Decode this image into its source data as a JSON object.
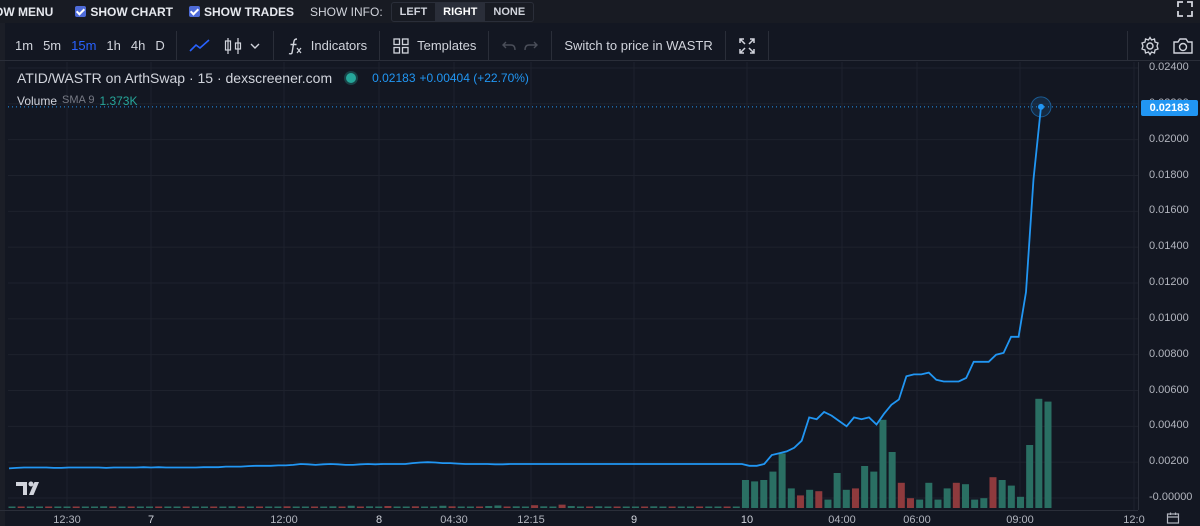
{
  "top_bar": {
    "menu_label": "OW MENU",
    "show_chart": "SHOW CHART",
    "show_trades": "SHOW TRADES",
    "show_info_label": "SHOW INFO:",
    "info_options": [
      "LEFT",
      "RIGHT",
      "NONE"
    ],
    "info_selected": "RIGHT"
  },
  "toolbar": {
    "timeframes": [
      "1m",
      "5m",
      "15m",
      "1h",
      "4h",
      "D"
    ],
    "active_timeframe": "15m",
    "indicators_label": "Indicators",
    "templates_label": "Templates",
    "switch_label": "Switch to price in WASTR"
  },
  "legend": {
    "symbol": "ATID/WASTR on ArthSwap · 15 · dexscreener.com",
    "price": "0.02183",
    "change": "+0.00404 (+22.70%)",
    "volume_label": "Volume",
    "sma_label": "SMA 9",
    "volume_value": "1.373K"
  },
  "price_badge": "0.02183",
  "colors": {
    "background": "#131722",
    "line": "#2196f3",
    "up": "#26a69a",
    "down": "#ef5350",
    "accent": "#2962ff"
  },
  "chart_data": {
    "type": "line",
    "price_ticks": [
      "0.02400",
      "0.02200",
      "0.02000",
      "0.01800",
      "0.01600",
      "0.01400",
      "0.01200",
      "0.01000",
      "0.00800",
      "0.00600",
      "0.00400",
      "0.00200",
      "-0.00000"
    ],
    "ylim": [
      0,
      0.024
    ],
    "x_labels": [
      "12:30",
      "7",
      "12:00",
      "8",
      "04:30",
      "12:15",
      "9",
      "10",
      "04:00",
      "06:00",
      "09:00",
      "12:0"
    ],
    "x_label_bold": [
      "7",
      "8",
      "9",
      "10"
    ],
    "price_series": [
      0.00165,
      0.00168,
      0.0017,
      0.0017,
      0.0017,
      0.0017,
      0.00168,
      0.00168,
      0.0017,
      0.0017,
      0.0017,
      0.0017,
      0.0017,
      0.00168,
      0.0017,
      0.0017,
      0.0017,
      0.0017,
      0.00172,
      0.0017,
      0.00172,
      0.0017,
      0.0017,
      0.0017,
      0.0017,
      0.0017,
      0.00172,
      0.00172,
      0.00172,
      0.00175,
      0.00175,
      0.00175,
      0.00178,
      0.0018,
      0.0018,
      0.0018,
      0.00182,
      0.00182,
      0.00185,
      0.0019,
      0.00188,
      0.00185,
      0.00188,
      0.0019,
      0.00188,
      0.00185,
      0.00185,
      0.00188,
      0.0019,
      0.00188,
      0.0019,
      0.0019,
      0.0019,
      0.0019,
      0.00195,
      0.00198,
      0.002,
      0.00198,
      0.00195,
      0.00195,
      0.00192,
      0.0019,
      0.0019,
      0.0019,
      0.0019,
      0.00188,
      0.00188,
      0.0019,
      0.0019,
      0.0019,
      0.0019,
      0.0019,
      0.0019,
      0.0019,
      0.0019,
      0.0019,
      0.0019,
      0.0019,
      0.0019,
      0.0019,
      0.0019,
      0.0019,
      0.0019,
      0.0019,
      0.0019,
      0.0019,
      0.0019,
      0.0019,
      0.0019,
      0.0019,
      0.0019,
      0.0019,
      0.0019,
      0.0019,
      0.0019,
      0.0019,
      0.0019,
      0.0019,
      0.0019,
      0.0018,
      0.0018,
      0.0019,
      0.0024,
      0.0025,
      0.0026,
      0.0028,
      0.0032,
      0.0045,
      0.0044,
      0.0048,
      0.0046,
      0.0043,
      0.004,
      0.0045,
      0.0044,
      0.0045,
      0.0041,
      0.0047,
      0.0052,
      0.0055,
      0.0068,
      0.0069,
      0.0069,
      0.007,
      0.0066,
      0.0065,
      0.0065,
      0.0065,
      0.0067,
      0.0076,
      0.0076,
      0.0076,
      0.008,
      0.0081,
      0.009,
      0.009,
      0.0115,
      0.0178,
      0.02183
    ],
    "volume_series": [
      {
        "v": 0.05,
        "up": true
      },
      {
        "v": 0.02,
        "up": false
      },
      {
        "v": 0.03,
        "up": true
      },
      {
        "v": 0.02,
        "up": true
      },
      {
        "v": 0.04,
        "up": false
      },
      {
        "v": 0.03,
        "up": true
      },
      {
        "v": 0.05,
        "up": true
      },
      {
        "v": 0.02,
        "up": false
      },
      {
        "v": 0.03,
        "up": true
      },
      {
        "v": 0.02,
        "up": true
      },
      {
        "v": 0.06,
        "up": true
      },
      {
        "v": 0.03,
        "up": false
      },
      {
        "v": 0.04,
        "up": true
      },
      {
        "v": 0.02,
        "up": false
      },
      {
        "v": 0.05,
        "up": true
      },
      {
        "v": 0.03,
        "up": true
      },
      {
        "v": 0.03,
        "up": false
      },
      {
        "v": 0.04,
        "up": true
      },
      {
        "v": 0.02,
        "up": true
      },
      {
        "v": 0.03,
        "up": false
      },
      {
        "v": 0.05,
        "up": true
      },
      {
        "v": 0.03,
        "up": true
      },
      {
        "v": 0.04,
        "up": false
      },
      {
        "v": 0.03,
        "up": true
      },
      {
        "v": 0.06,
        "up": true
      },
      {
        "v": 0.04,
        "up": false
      },
      {
        "v": 0.03,
        "up": true
      },
      {
        "v": 0.05,
        "up": false
      },
      {
        "v": 0.03,
        "up": true
      },
      {
        "v": 0.04,
        "up": true
      },
      {
        "v": 0.06,
        "up": false
      },
      {
        "v": 0.05,
        "up": true
      },
      {
        "v": 0.03,
        "up": true
      },
      {
        "v": 0.04,
        "up": false
      },
      {
        "v": 0.05,
        "up": true
      },
      {
        "v": 0.06,
        "up": true
      },
      {
        "v": 0.03,
        "up": false
      },
      {
        "v": 0.08,
        "up": true
      },
      {
        "v": 0.05,
        "up": false
      },
      {
        "v": 0.06,
        "up": true
      },
      {
        "v": 0.04,
        "up": true
      },
      {
        "v": 0.07,
        "up": false
      },
      {
        "v": 0.05,
        "up": true
      },
      {
        "v": 0.04,
        "up": true
      },
      {
        "v": 0.06,
        "up": false
      },
      {
        "v": 0.03,
        "up": true
      },
      {
        "v": 0.05,
        "up": true
      },
      {
        "v": 0.08,
        "up": true
      },
      {
        "v": 0.06,
        "up": false
      },
      {
        "v": 0.04,
        "up": true
      },
      {
        "v": 0.05,
        "up": true
      },
      {
        "v": 0.03,
        "up": false
      },
      {
        "v": 0.07,
        "up": true
      },
      {
        "v": 0.09,
        "up": true
      },
      {
        "v": 0.05,
        "up": false
      },
      {
        "v": 0.06,
        "up": true
      },
      {
        "v": 0.04,
        "up": true
      },
      {
        "v": 0.1,
        "up": false
      },
      {
        "v": 0.06,
        "up": true
      },
      {
        "v": 0.05,
        "up": true
      },
      {
        "v": 0.12,
        "up": false
      },
      {
        "v": 0.07,
        "up": true
      },
      {
        "v": 0.05,
        "up": true
      },
      {
        "v": 0.04,
        "up": false
      },
      {
        "v": 0.06,
        "up": true
      },
      {
        "v": 0.05,
        "up": true
      },
      {
        "v": 0.04,
        "up": false
      },
      {
        "v": 0.05,
        "up": true
      },
      {
        "v": 0.03,
        "up": true
      },
      {
        "v": 0.04,
        "up": false
      },
      {
        "v": 0.06,
        "up": true
      },
      {
        "v": 0.05,
        "up": true
      },
      {
        "v": 0.03,
        "up": false
      },
      {
        "v": 0.04,
        "up": true
      },
      {
        "v": 0.05,
        "up": true
      },
      {
        "v": 0.03,
        "up": false
      },
      {
        "v": 0.04,
        "up": true
      },
      {
        "v": 0.03,
        "up": true
      },
      {
        "v": 0.05,
        "up": false
      },
      {
        "v": 0.04,
        "up": true
      },
      {
        "v": 1.0,
        "up": true
      },
      {
        "v": 0.95,
        "up": true
      },
      {
        "v": 1.0,
        "up": true
      },
      {
        "v": 1.3,
        "up": true
      },
      {
        "v": 1.95,
        "up": true
      },
      {
        "v": 0.7,
        "up": true
      },
      {
        "v": 0.45,
        "up": false
      },
      {
        "v": 0.65,
        "up": true
      },
      {
        "v": 0.6,
        "up": false
      },
      {
        "v": 0.3,
        "up": true
      },
      {
        "v": 1.25,
        "up": true
      },
      {
        "v": 0.65,
        "up": true
      },
      {
        "v": 0.7,
        "up": false
      },
      {
        "v": 1.5,
        "up": true
      },
      {
        "v": 1.3,
        "up": true
      },
      {
        "v": 3.15,
        "up": true
      },
      {
        "v": 2.0,
        "up": true
      },
      {
        "v": 0.9,
        "up": false
      },
      {
        "v": 0.35,
        "up": false
      },
      {
        "v": 0.3,
        "up": true
      },
      {
        "v": 0.9,
        "up": true
      },
      {
        "v": 0.3,
        "up": true
      },
      {
        "v": 0.7,
        "up": true
      },
      {
        "v": 0.9,
        "up": false
      },
      {
        "v": 0.85,
        "up": true
      },
      {
        "v": 0.3,
        "up": true
      },
      {
        "v": 0.35,
        "up": true
      },
      {
        "v": 1.1,
        "up": false
      },
      {
        "v": 1.0,
        "up": true
      },
      {
        "v": 0.8,
        "up": true
      },
      {
        "v": 0.4,
        "up": true
      },
      {
        "v": 2.25,
        "up": true
      },
      {
        "v": 3.9,
        "up": true
      },
      {
        "v": 3.8,
        "up": true
      }
    ]
  },
  "axis_corner_labels": {
    "time_corner": "12:0"
  }
}
